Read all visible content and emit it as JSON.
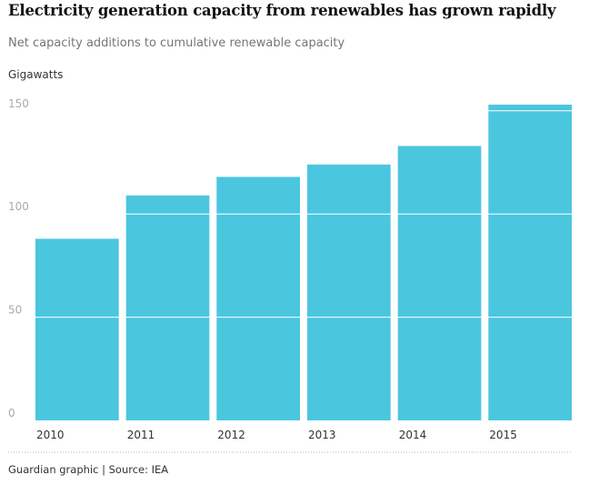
{
  "header": {
    "title": "Electricity generation capacity from renewables has grown rapidly",
    "subtitle": "Net capacity additions to cumulative renewable capacity",
    "unit_label": "Gigawatts"
  },
  "footer": {
    "credit": "Guardian graphic | Source: IEA"
  },
  "colors": {
    "bar": "#4bc6df",
    "gridline": "#ffffff",
    "tick_text": "#aaaaaa",
    "category_text": "#333333",
    "baseline_dots": "#bbbbbb"
  },
  "chart_data": {
    "type": "bar",
    "title": "Electricity generation capacity from renewables has grown rapidly",
    "subtitle": "Net capacity additions to cumulative renewable capacity",
    "ylabel": "Gigawatts",
    "categories": [
      "2010",
      "2011",
      "2012",
      "2013",
      "2014",
      "2015"
    ],
    "values": [
      88,
      109,
      118,
      124,
      133,
      153
    ],
    "ylim": [
      0,
      153
    ],
    "yticks": [
      0,
      50,
      100,
      150
    ],
    "grid": true,
    "legend": "none"
  }
}
